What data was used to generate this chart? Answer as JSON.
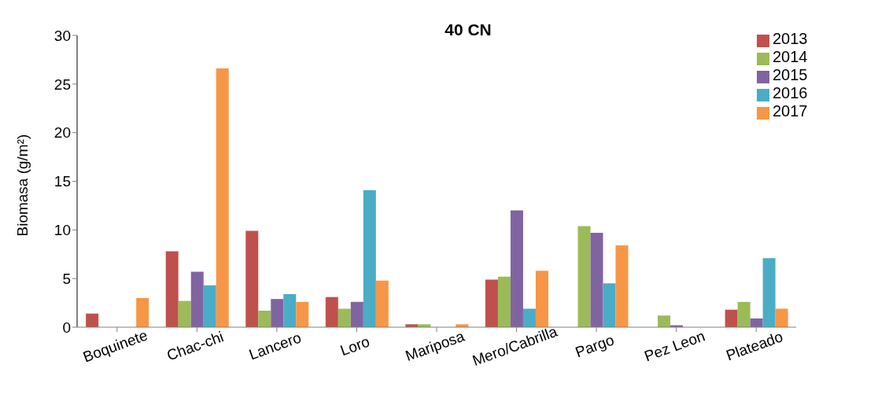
{
  "chart_data": {
    "type": "bar",
    "title": "40 CN",
    "ylabel": "Biomasa (g/m²)",
    "categories": [
      "Boquinete",
      "Chac-chi",
      "Lancero",
      "Loro",
      "Mariposa",
      "Mero/Cabrilla",
      "Pargo",
      "Pez Leon",
      "Plateado"
    ],
    "series": [
      {
        "name": "2013",
        "color": "#c0504d",
        "values": [
          1.4,
          7.8,
          9.9,
          3.1,
          0.3,
          4.9,
          0,
          0,
          1.8
        ]
      },
      {
        "name": "2014",
        "color": "#9bbb59",
        "values": [
          0,
          2.7,
          1.7,
          1.9,
          0.3,
          5.2,
          10.4,
          1.2,
          2.6
        ]
      },
      {
        "name": "2015",
        "color": "#8064a2",
        "values": [
          0,
          5.7,
          2.9,
          2.6,
          0,
          12.0,
          9.7,
          0.2,
          0.9
        ]
      },
      {
        "name": "2016",
        "color": "#4bacc6",
        "values": [
          0,
          4.3,
          3.4,
          14.1,
          0,
          1.9,
          4.5,
          0,
          7.1
        ]
      },
      {
        "name": "2017",
        "color": "#f79646",
        "values": [
          3.0,
          26.6,
          2.6,
          4.8,
          0.3,
          5.8,
          8.4,
          0,
          1.9
        ]
      }
    ],
    "ylim": [
      0,
      30
    ],
    "yticks": [
      0,
      5,
      10,
      15,
      20,
      25,
      30
    ],
    "grid": false,
    "legend": "top right"
  }
}
